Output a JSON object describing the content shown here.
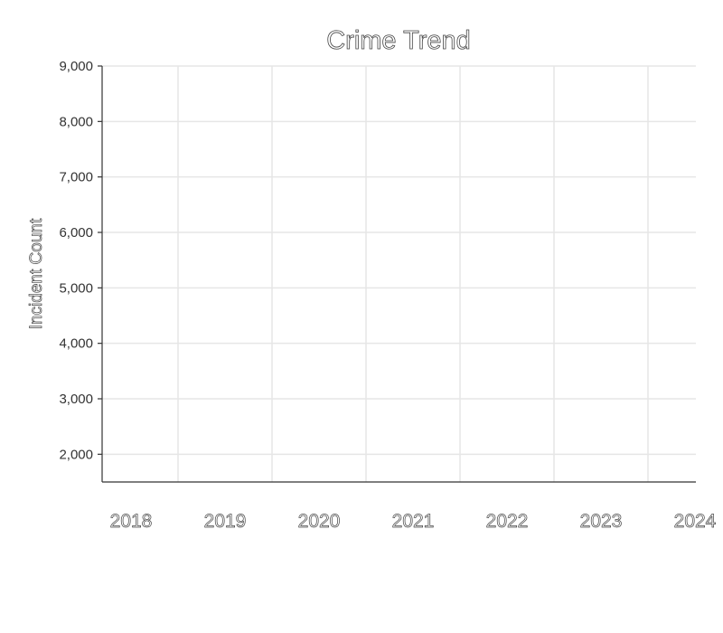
{
  "chart_data": {
    "type": "line",
    "title": "Crime Trend",
    "xlabel": "",
    "ylabel": "Incident Count",
    "x": [
      "2018",
      "2019",
      "2020",
      "2021",
      "2022",
      "2023",
      "2024"
    ],
    "series": [],
    "yticks": [
      "2,000",
      "3,000",
      "4,000",
      "5,000",
      "6,000",
      "7,000",
      "8,000",
      "9,000"
    ],
    "ylim": [
      1500,
      9000
    ],
    "grid": true,
    "legend": "none"
  }
}
